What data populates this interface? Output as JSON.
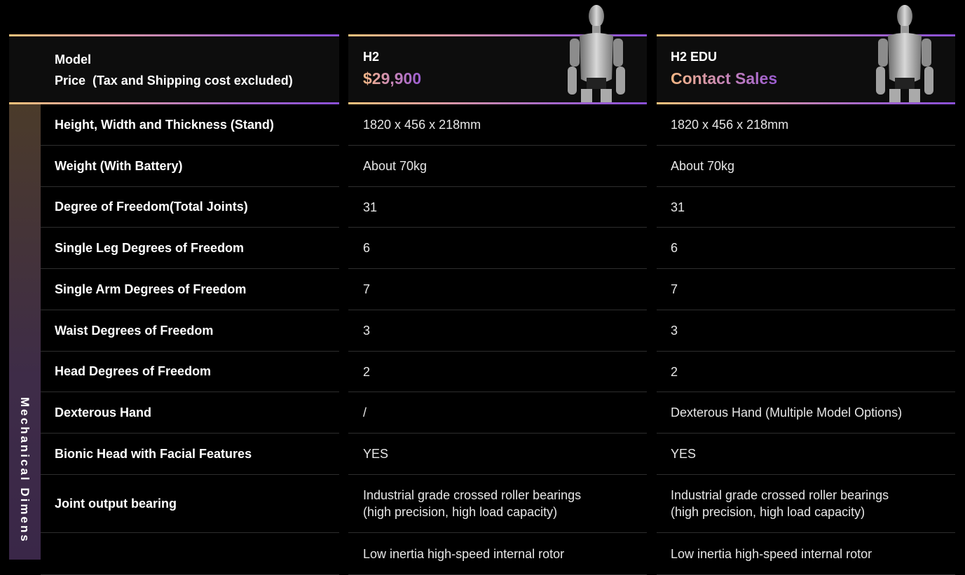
{
  "header": {
    "model_label": "Model",
    "price_label": "Price  (Tax and Shipping cost excluded)",
    "products": [
      {
        "name": "H2",
        "price": "$29,900",
        "image": "humanoid-robot"
      },
      {
        "name": "H2 EDU",
        "price": "Contact Sales",
        "image": "humanoid-robot"
      }
    ]
  },
  "section": {
    "label": "Mechanical Dimens"
  },
  "rows": [
    {
      "label": "Height, Width and Thickness  (Stand)",
      "values": [
        "1820 x 456 x 218mm",
        "1820 x 456 x 218mm"
      ]
    },
    {
      "label": "Weight (With Battery)",
      "values": [
        "About 70kg",
        "About 70kg"
      ]
    },
    {
      "label": "Degree of Freedom(Total Joints)",
      "values": [
        "31",
        "31"
      ]
    },
    {
      "label": "Single Leg Degrees of Freedom",
      "values": [
        "6",
        "6"
      ]
    },
    {
      "label": "Single Arm Degrees of Freedom",
      "values": [
        "7",
        "7"
      ]
    },
    {
      "label": "Waist Degrees of Freedom",
      "values": [
        "3",
        "3"
      ]
    },
    {
      "label": "Head Degrees of Freedom",
      "values": [
        "2",
        "2"
      ]
    },
    {
      "label": "Dexterous Hand",
      "values": [
        "/",
        "Dexterous Hand (Multiple Model Options)"
      ]
    },
    {
      "label": "Bionic Head with Facial Features",
      "values": [
        "YES",
        "YES"
      ]
    },
    {
      "label": "Joint output bearing",
      "values": [
        "Industrial grade crossed roller bearings\n(high precision, high load capacity)",
        "Industrial grade crossed roller bearings\n(high precision, high load capacity)"
      ]
    },
    {
      "label": "",
      "values": [
        "Low inertia high-speed internal rotor",
        "Low inertia high-speed internal rotor"
      ]
    }
  ],
  "colors": {
    "accent_start": "#f6c27a",
    "accent_end": "#8a4fd6",
    "background": "#000000"
  }
}
